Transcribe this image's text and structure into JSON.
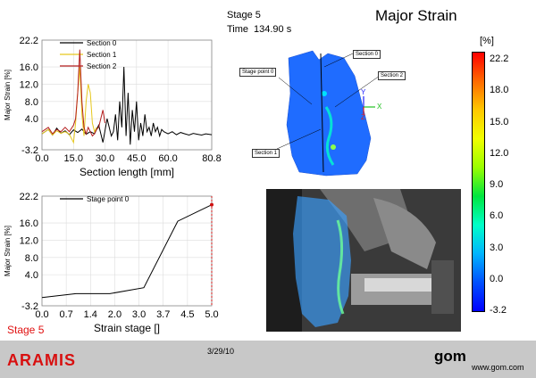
{
  "header": {
    "stage_line": "Stage 5",
    "time_label": "Time",
    "time_value": "134.90 s",
    "title": "Major Strain"
  },
  "chart_data": [
    {
      "type": "line",
      "ylabel": "Major Strain [%]",
      "xlabel": "Section length [mm]",
      "xlim": [
        0.0,
        80.8
      ],
      "ylim": [
        -3.2,
        22.2
      ],
      "xticks": [
        "0.0",
        "15.0",
        "30.0",
        "45.0",
        "60.0",
        "80.8"
      ],
      "yticks": [
        "22.2",
        "16.0",
        "12.0",
        "8.0",
        "4.0",
        "-3.2"
      ],
      "grid": true,
      "legend_position": "top",
      "series": [
        {
          "name": "Section 0",
          "color": "#000000",
          "x": [
            0,
            3,
            5,
            7,
            9,
            11,
            13,
            15,
            17,
            19,
            21,
            23,
            25,
            27,
            29,
            31,
            33,
            34,
            35,
            36,
            37,
            38,
            39,
            40,
            41,
            42,
            43,
            44,
            45,
            46,
            47,
            48,
            49,
            50,
            51,
            52,
            53,
            54,
            55,
            56,
            57,
            58,
            60,
            62,
            64,
            66,
            68,
            70,
            72,
            74,
            76,
            78,
            80.8
          ],
          "y": [
            0.5,
            1.5,
            0.2,
            1.8,
            0.6,
            1.2,
            0.3,
            1.4,
            0.8,
            1.6,
            0.4,
            1.0,
            0.5,
            2.5,
            -1.5,
            4,
            0,
            1,
            5,
            -1,
            8,
            2,
            16,
            0,
            10,
            -2,
            6,
            1,
            8,
            -1,
            3,
            0,
            5,
            1,
            2,
            0,
            3,
            1,
            2,
            0,
            1.5,
            1,
            0.5,
            1,
            0.3,
            0.8,
            0.5,
            0.2,
            0.6,
            0.4,
            0.2,
            0.5,
            0.3
          ]
        },
        {
          "name": "Section 1",
          "color": "#e6c81e",
          "x": [
            0,
            3,
            5,
            7,
            9,
            11,
            13,
            15,
            16,
            17,
            18,
            19,
            20,
            21,
            22,
            23,
            24,
            25,
            26
          ],
          "y": [
            0.5,
            1.5,
            0.2,
            1.2,
            0.6,
            1.0,
            0.4,
            -1.5,
            3,
            10,
            16,
            5,
            0,
            8,
            12,
            10,
            3,
            1,
            2
          ]
        },
        {
          "name": "Section 2",
          "color": "#b41e1e",
          "x": [
            0,
            3,
            5,
            7,
            9,
            11,
            13,
            15,
            16,
            17,
            18,
            19,
            20,
            21,
            22,
            23,
            24,
            25,
            26,
            27,
            28,
            29,
            30
          ],
          "y": [
            1,
            2,
            0.5,
            1.5,
            1.0,
            2.0,
            1.0,
            2.5,
            4,
            10,
            20,
            8,
            2,
            0.5,
            2,
            1,
            0,
            0.5,
            1.5,
            2,
            4,
            6,
            3
          ]
        }
      ]
    },
    {
      "type": "line",
      "ylabel": "Major Strain [%]",
      "xlabel": "Strain stage []",
      "xlim": [
        0,
        5
      ],
      "ylim": [
        -3.2,
        22.2
      ],
      "xticks": [
        "0.0",
        "0.7",
        "1.4",
        "2.0",
        "3.0",
        "3.7",
        "4.5",
        "5.0"
      ],
      "yticks": [
        "22.2",
        "16.0",
        "12.0",
        "8.0",
        "4.0",
        "-3.2"
      ],
      "grid": true,
      "legend_position": "top",
      "series": [
        {
          "name": "Stage point 0",
          "color": "#000000",
          "x": [
            0,
            1,
            2,
            3,
            4,
            5
          ],
          "y": [
            -1.3,
            -0.4,
            -0.4,
            1.0,
            16.4,
            20.2
          ]
        }
      ],
      "stage_marker_x": 5
    }
  ],
  "stage_indicator": "Stage 5",
  "colorbar": {
    "unit": "[%]",
    "ticks": [
      "22.2",
      "18.0",
      "15.0",
      "12.0",
      "9.0",
      "6.0",
      "3.0",
      "0.0",
      "-3.2"
    ],
    "colors": [
      "#ff0000",
      "#ff6a00",
      "#ffc800",
      "#f0ff00",
      "#9aff00",
      "#00e640",
      "#00ffc8",
      "#00b4ff",
      "#0050ff",
      "#0000ff"
    ]
  },
  "view3d": {
    "callouts": [
      "Section 0",
      "Stage point 0",
      "Section 2",
      "Section 1"
    ],
    "axes": [
      "Y",
      "X",
      "Z"
    ]
  },
  "footer": {
    "brand": "ARAMIS",
    "date": "3/29/10",
    "logo": "gom",
    "url": "www.gom.com"
  }
}
